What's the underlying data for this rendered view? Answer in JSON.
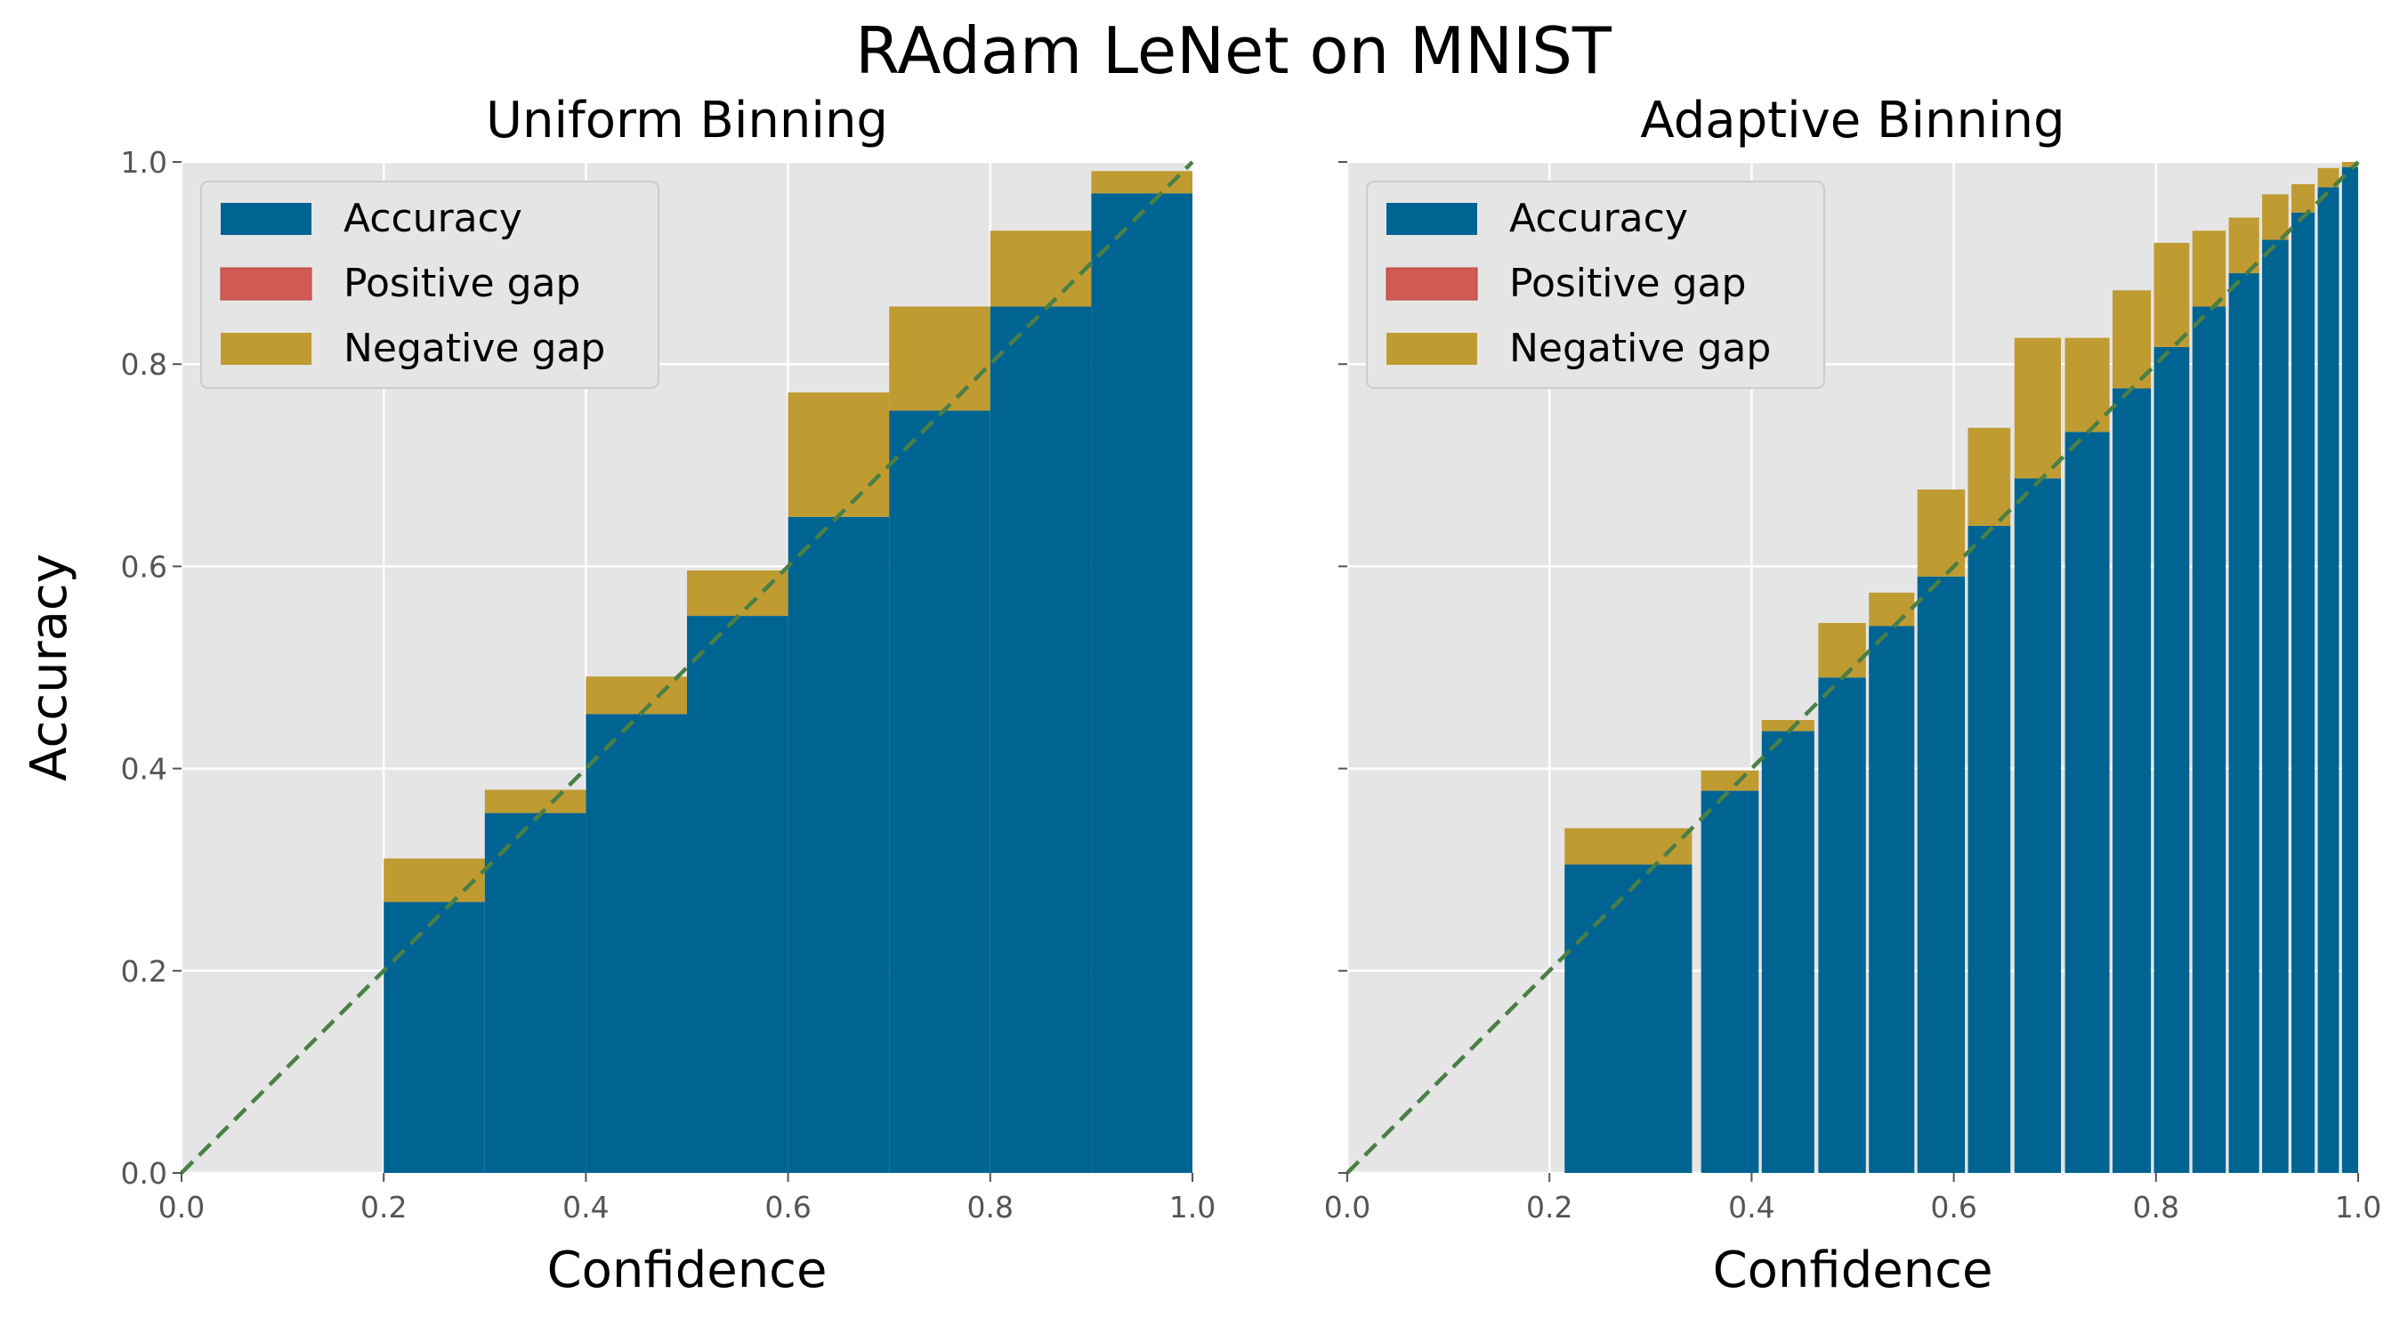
{
  "suptitle": "RAdam LeNet on MNIST",
  "colors": {
    "background": "#e5e5e5",
    "grid": "#ffffff",
    "accuracy": "#006492",
    "positive_gap": "#d15a55",
    "negative_gap": "#bf9b32",
    "diagonal": "#4a7f45",
    "legend_bg": "#e5e5e5",
    "legend_border": "#cccccc"
  },
  "legend": {
    "placement": "top-left",
    "items": [
      {
        "key": "accuracy",
        "label": "Accuracy"
      },
      {
        "key": "positive_gap",
        "label": "Positive gap"
      },
      {
        "key": "negative_gap",
        "label": "Negative gap"
      }
    ]
  },
  "chart_data": [
    {
      "type": "bar",
      "title": "Uniform Binning",
      "xlabel": "Confidence",
      "ylabel": "Accuracy",
      "xlim": [
        0,
        1
      ],
      "ylim": [
        0,
        1
      ],
      "xticks": [
        "0.0",
        "0.2",
        "0.4",
        "0.6",
        "0.8",
        "1.0"
      ],
      "yticks": [
        "0.0",
        "0.2",
        "0.4",
        "0.6",
        "0.8",
        "1.0"
      ],
      "show_ytick_labels": true,
      "grid": true,
      "diagonal": true,
      "bins": [
        {
          "left": 0.2,
          "right": 0.3,
          "accuracy": 0.268,
          "confidence": 0.311
        },
        {
          "left": 0.3,
          "right": 0.4,
          "accuracy": 0.356,
          "confidence": 0.379
        },
        {
          "left": 0.4,
          "right": 0.5,
          "accuracy": 0.454,
          "confidence": 0.491
        },
        {
          "left": 0.5,
          "right": 0.6,
          "accuracy": 0.551,
          "confidence": 0.596
        },
        {
          "left": 0.6,
          "right": 0.7,
          "accuracy": 0.649,
          "confidence": 0.772
        },
        {
          "left": 0.7,
          "right": 0.8,
          "accuracy": 0.754,
          "confidence": 0.857
        },
        {
          "left": 0.8,
          "right": 0.9,
          "accuracy": 0.857,
          "confidence": 0.932
        },
        {
          "left": 0.9,
          "right": 1.0,
          "accuracy": 0.969,
          "confidence": 0.991
        }
      ]
    },
    {
      "type": "bar",
      "title": "Adaptive Binning",
      "xlabel": "Confidence",
      "ylabel": "",
      "xlim": [
        0,
        1
      ],
      "ylim": [
        0,
        1
      ],
      "xticks": [
        "0.0",
        "0.2",
        "0.4",
        "0.6",
        "0.8",
        "1.0"
      ],
      "yticks": [
        "0.0",
        "0.2",
        "0.4",
        "0.6",
        "0.8",
        "1.0"
      ],
      "show_ytick_labels": false,
      "grid": true,
      "diagonal": true,
      "bins": [
        {
          "left": 0.215,
          "right": 0.341,
          "accuracy": 0.305,
          "confidence": 0.341
        },
        {
          "left": 0.35,
          "right": 0.407,
          "accuracy": 0.378,
          "confidence": 0.398
        },
        {
          "left": 0.41,
          "right": 0.462,
          "accuracy": 0.437,
          "confidence": 0.448
        },
        {
          "left": 0.466,
          "right": 0.513,
          "accuracy": 0.49,
          "confidence": 0.544
        },
        {
          "left": 0.516,
          "right": 0.561,
          "accuracy": 0.541,
          "confidence": 0.574
        },
        {
          "left": 0.564,
          "right": 0.611,
          "accuracy": 0.59,
          "confidence": 0.676
        },
        {
          "left": 0.614,
          "right": 0.656,
          "accuracy": 0.64,
          "confidence": 0.737
        },
        {
          "left": 0.66,
          "right": 0.706,
          "accuracy": 0.687,
          "confidence": 0.826
        },
        {
          "left": 0.71,
          "right": 0.754,
          "accuracy": 0.733,
          "confidence": 0.826
        },
        {
          "left": 0.757,
          "right": 0.795,
          "accuracy": 0.776,
          "confidence": 0.873
        },
        {
          "left": 0.798,
          "right": 0.833,
          "accuracy": 0.817,
          "confidence": 0.92
        },
        {
          "left": 0.836,
          "right": 0.869,
          "accuracy": 0.857,
          "confidence": 0.932
        },
        {
          "left": 0.872,
          "right": 0.902,
          "accuracy": 0.89,
          "confidence": 0.945
        },
        {
          "left": 0.905,
          "right": 0.931,
          "accuracy": 0.923,
          "confidence": 0.968
        },
        {
          "left": 0.934,
          "right": 0.957,
          "accuracy": 0.95,
          "confidence": 0.978
        },
        {
          "left": 0.96,
          "right": 0.981,
          "accuracy": 0.975,
          "confidence": 0.994
        },
        {
          "left": 0.984,
          "right": 1.0,
          "accuracy": 0.995,
          "confidence": 1.0
        }
      ]
    }
  ]
}
